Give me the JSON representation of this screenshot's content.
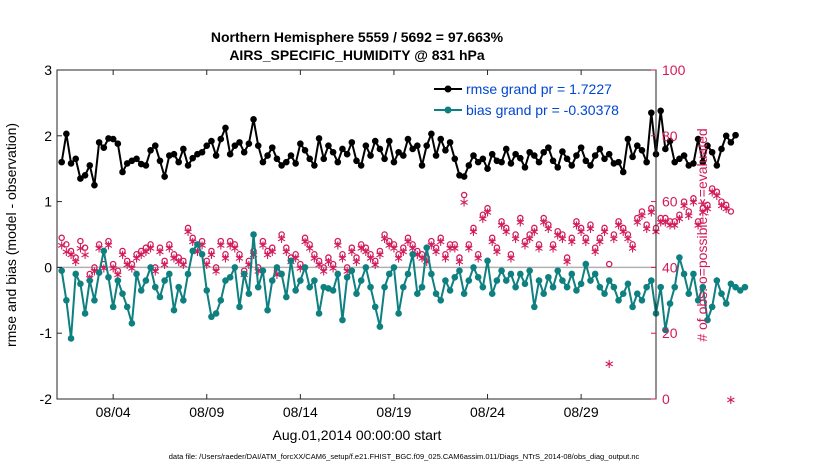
{
  "chart_data": {
    "type": "line",
    "title_line1": "Northern Hemisphere 5559 / 5692 = 97.663%",
    "title_line2": "AIRS_SPECIFIC_HUMIDITY @ 831 hPa",
    "ylabel_left": "rmse and bias (model - observation)",
    "ylabel_right": "# of obs: o=possible; ∗=evaluated",
    "xlabel": "Aug.01,2014 00:00:00 start",
    "footer": "data file: /Users/raeder/DAI/ATM_forcXX/CAM6_setup/f.e21.FHIST_BGC.f09_025.CAM6assim.011/Diags_NTrS_2014-08/obs_diag_output.nc",
    "ylim_left": [
      -2,
      3
    ],
    "ylim_right": [
      0,
      100
    ],
    "yticks_left": [
      -2,
      -1,
      0,
      1,
      2,
      3
    ],
    "yticks_right": [
      0,
      20,
      40,
      60,
      80,
      100
    ],
    "xlim_days": [
      0,
      32
    ],
    "xticks": [
      {
        "day": 3,
        "label": "08/04"
      },
      {
        "day": 8,
        "label": "08/09"
      },
      {
        "day": 13,
        "label": "08/14"
      },
      {
        "day": 18,
        "label": "08/19"
      },
      {
        "day": 23,
        "label": "08/24"
      },
      {
        "day": 28,
        "label": "08/29"
      }
    ],
    "colors": {
      "rmse": "#000000",
      "bias": "#0e8080",
      "obs": "#d21a5a",
      "zero": "#b0b0b0"
    },
    "series": [
      {
        "name": "rmse",
        "legend": "rmse grand pr = 1.7227",
        "x_start_day": 0.25,
        "x_step_day": 0.25,
        "values": [
          1.6,
          2.03,
          1.58,
          1.65,
          1.35,
          1.4,
          1.55,
          1.25,
          1.9,
          1.82,
          1.96,
          1.95,
          1.88,
          1.45,
          1.58,
          1.62,
          1.65,
          1.57,
          1.55,
          1.78,
          1.85,
          1.62,
          1.38,
          1.7,
          1.72,
          1.6,
          1.8,
          1.55,
          1.66,
          1.72,
          1.75,
          1.85,
          1.92,
          1.7,
          1.95,
          2.12,
          1.72,
          1.85,
          1.9,
          1.75,
          1.88,
          2.25,
          1.85,
          1.6,
          1.7,
          1.82,
          1.65,
          1.55,
          1.6,
          1.7,
          1.58,
          1.88,
          1.78,
          1.65,
          1.55,
          1.96,
          1.65,
          1.85,
          1.75,
          1.6,
          1.8,
          1.72,
          1.9,
          1.62,
          1.55,
          1.85,
          1.7,
          1.92,
          1.8,
          1.65,
          1.92,
          1.6,
          1.75,
          1.7,
          1.95,
          1.8,
          1.85,
          1.55,
          1.85,
          2.03,
          1.7,
          1.95,
          1.78,
          1.9,
          1.65,
          1.4,
          1.38,
          1.55,
          1.7,
          1.6,
          1.65,
          1.5,
          1.72,
          1.62,
          1.6,
          1.8,
          1.58,
          1.72,
          1.66,
          1.52,
          1.75,
          1.7,
          1.6,
          1.75,
          1.82,
          1.62,
          1.52,
          1.76,
          1.65,
          1.55,
          1.7,
          1.82,
          1.62,
          1.55,
          1.7,
          1.8,
          1.65,
          1.72,
          1.58,
          1.6,
          1.45,
          1.95,
          1.68,
          1.85,
          1.78,
          1.6,
          2.35,
          1.72,
          2.38,
          1.8,
          1.92,
          1.6,
          1.65,
          1.7,
          1.55,
          1.58,
          1.95,
          1.6,
          1.85,
          1.75,
          1.55,
          1.8,
          2.0,
          1.9,
          2.01
        ]
      },
      {
        "name": "bias",
        "legend": "bias grand pr = -0.30378",
        "x_start_day": 0.25,
        "x_step_day": 0.25,
        "values": [
          -0.05,
          -0.5,
          -1.08,
          -0.1,
          -0.25,
          -0.7,
          -0.2,
          -0.5,
          -0.08,
          0.25,
          -0.15,
          -0.6,
          -0.2,
          -0.4,
          -0.6,
          -0.85,
          -0.1,
          -0.35,
          -0.2,
          0.0,
          -0.3,
          -0.45,
          -0.2,
          -0.1,
          -0.65,
          -0.3,
          -0.5,
          -0.1,
          0.25,
          0.35,
          0.2,
          -0.35,
          -0.75,
          -0.7,
          -0.5,
          -0.2,
          -0.15,
          0.0,
          -0.6,
          -0.1,
          -0.4,
          0.5,
          -0.3,
          -0.05,
          -0.65,
          -0.2,
          0.0,
          -0.1,
          -0.45,
          0.1,
          -0.35,
          -0.2,
          0.0,
          -0.3,
          -0.2,
          -0.7,
          -0.3,
          -0.32,
          -0.35,
          -0.1,
          -0.8,
          -0.15,
          -0.05,
          -0.4,
          -0.2,
          0.0,
          -0.3,
          -0.6,
          -0.9,
          -0.3,
          -0.1,
          0.0,
          -0.7,
          -0.3,
          -0.1,
          0.2,
          -0.4,
          -0.3,
          0.3,
          -0.1,
          -0.4,
          -0.5,
          -0.2,
          -0.35,
          -0.15,
          -0.05,
          -0.4,
          -0.2,
          0.0,
          -0.15,
          -0.3,
          0.1,
          -0.4,
          -0.2,
          -0.05,
          -0.2,
          -0.1,
          -0.3,
          -0.1,
          -0.25,
          -0.05,
          -0.6,
          -0.2,
          -0.4,
          -0.15,
          -0.3,
          -0.05,
          -0.2,
          -0.3,
          -0.1,
          -0.35,
          -0.25,
          0.05,
          -0.2,
          -0.1,
          -0.3,
          -0.4,
          -0.2,
          -0.3,
          -0.5,
          -0.4,
          -0.25,
          -0.6,
          -0.4,
          -0.5,
          -0.3,
          -0.2,
          -0.7,
          -0.3,
          -0.95,
          -0.55,
          -0.3,
          0.15,
          -0.1,
          -0.4,
          -0.1,
          -0.5,
          -0.3,
          -0.8,
          -0.6,
          -0.2,
          -0.4,
          -0.55,
          -0.25,
          -0.3,
          -0.35,
          -0.3
        ]
      },
      {
        "name": "obs_possible",
        "x_start_day": 0.25,
        "x_step_day": 0.25,
        "values": [
          49,
          47,
          45,
          43,
          48,
          46,
          38,
          40,
          47,
          41,
          48,
          41,
          39,
          45,
          42,
          41,
          44,
          45,
          46,
          47,
          40,
          46,
          42,
          47,
          44,
          43,
          42,
          52,
          49,
          46,
          48,
          42,
          45,
          40,
          48,
          44,
          48,
          47,
          44,
          39,
          42,
          45,
          40,
          48,
          45,
          46,
          39,
          50,
          46,
          43,
          44,
          41,
          49,
          47,
          44,
          42,
          40,
          43,
          41,
          48,
          44,
          40,
          46,
          43,
          47,
          46,
          44,
          42,
          45,
          50,
          48,
          47,
          44,
          46,
          49,
          47,
          45,
          44,
          43,
          48,
          46,
          49,
          44,
          47,
          47,
          43,
          62,
          47,
          52,
          44,
          56,
          58,
          49,
          46,
          54,
          52,
          44,
          50,
          55,
          48,
          50,
          52,
          47,
          55,
          53,
          47,
          51,
          50,
          43,
          49,
          54,
          52,
          49,
          53,
          46,
          49,
          52,
          41,
          50,
          54,
          52,
          50,
          47,
          55,
          57,
          53,
          58,
          52,
          55,
          55,
          54,
          54,
          56,
          60,
          57,
          61,
          54,
          58,
          59,
          64,
          63,
          60,
          59,
          57
        ]
      },
      {
        "name": "obs_evaluated",
        "x_start_day": 0.25,
        "x_step_day": 0.25,
        "values": [
          47,
          45,
          44,
          42,
          46,
          44,
          37,
          39,
          46,
          40,
          47,
          40,
          38,
          44,
          41,
          40,
          43,
          44,
          45,
          46,
          39,
          45,
          41,
          46,
          43,
          42,
          41,
          51,
          48,
          45,
          47,
          41,
          44,
          39,
          47,
          43,
          47,
          46,
          43,
          38,
          41,
          44,
          39,
          47,
          44,
          45,
          38,
          49,
          45,
          42,
          43,
          40,
          48,
          46,
          43,
          41,
          39,
          42,
          40,
          47,
          43,
          39,
          45,
          42,
          46,
          45,
          43,
          41,
          44,
          49,
          47,
          46,
          43,
          45,
          48,
          46,
          44,
          43,
          42,
          47,
          45,
          48,
          43,
          46,
          46,
          42,
          60,
          46,
          51,
          43,
          55,
          57,
          48,
          45,
          53,
          51,
          43,
          49,
          54,
          47,
          49,
          51,
          46,
          54,
          52,
          46,
          50,
          49,
          42,
          48,
          53,
          51,
          48,
          52,
          45,
          48,
          51,
          11,
          49,
          53,
          51,
          49,
          46,
          54,
          56,
          52,
          57,
          51,
          54,
          54,
          53,
          53,
          55,
          59,
          56,
          60,
          53,
          57,
          58,
          63,
          62,
          59,
          58,
          0
        ]
      }
    ]
  }
}
